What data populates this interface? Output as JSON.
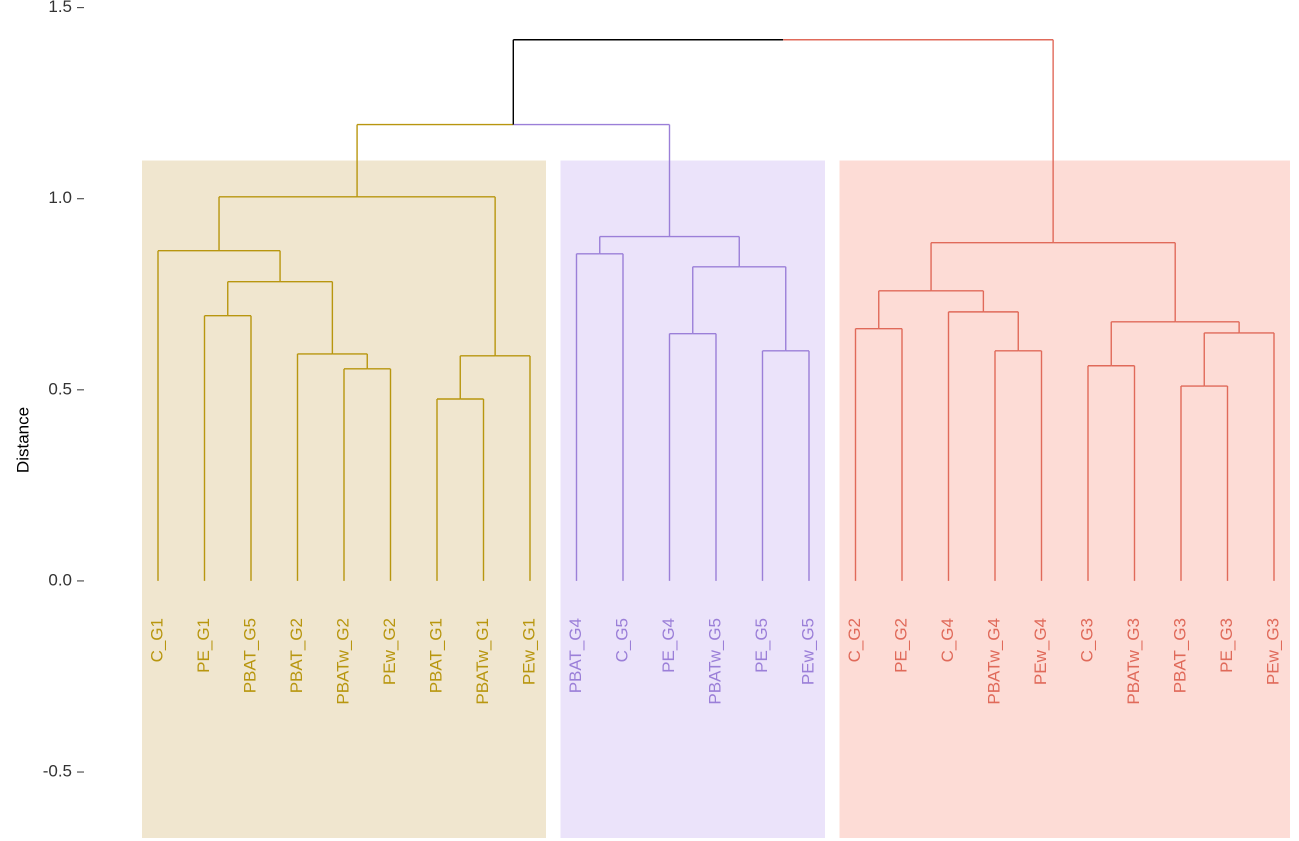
{
  "chart_data": {
    "type": "dendrogram",
    "y_label": "Distance",
    "ylim": [
      -0.67,
      1.52
    ],
    "yticks": [
      {
        "value": -0.5,
        "label": "-0.5"
      },
      {
        "value": 0,
        "label": "0.0"
      },
      {
        "value": 0.5,
        "label": "0.5"
      },
      {
        "value": 1,
        "label": "1.0"
      },
      {
        "value": 1.5,
        "label": "1.5"
      }
    ],
    "link_color": "#000000",
    "box_top": 1.1,
    "clusters": [
      {
        "color": "#b8960f",
        "fill": "#f0e6cf",
        "leaves": [
          "C_G1",
          "PE_G1",
          "PBAT_G5",
          "PBAT_G2",
          "PBATw_G2",
          "PEw_G2",
          "PBAT_G1",
          "PBATw_G1",
          "PEw_G1"
        ]
      },
      {
        "color": "#9b7fd8",
        "fill": "#ebe3fa",
        "leaves": [
          "PBAT_G4",
          "C_G5",
          "PE_G4",
          "PBATw_G5",
          "PE_G5",
          "PEw_G5"
        ]
      },
      {
        "color": "#e06a5a",
        "fill": "#fddcd6",
        "leaves": [
          "C_G2",
          "PE_G2",
          "C_G4",
          "PBATw_G4",
          "PEw_G4",
          "C_G3",
          "PBATw_G3",
          "PBAT_G3",
          "PE_G3",
          "PEw_G3"
        ]
      }
    ],
    "tree": {
      "height": 1.416,
      "children": [
        {
          "height": 1.194,
          "children": [
            {
              "height": 1.005,
              "children": [
                {
                  "height": 0.864,
                  "children": [
                    0,
                    {
                      "height": 0.783,
                      "children": [
                        {
                          "height": 0.694,
                          "children": [
                            1,
                            2
                          ]
                        },
                        {
                          "height": 0.594,
                          "children": [
                            3,
                            {
                              "height": 0.555,
                              "children": [
                                4,
                                5
                              ]
                            }
                          ]
                        }
                      ]
                    }
                  ]
                },
                {
                  "height": 0.589,
                  "children": [
                    {
                      "height": 0.476,
                      "children": [
                        6,
                        7
                      ]
                    },
                    8
                  ]
                }
              ]
            },
            {
              "height": 0.901,
              "children": [
                {
                  "height": 0.856,
                  "children": [
                    9,
                    10
                  ]
                },
                {
                  "height": 0.822,
                  "children": [
                    {
                      "height": 0.647,
                      "children": [
                        11,
                        12
                      ]
                    },
                    {
                      "height": 0.602,
                      "children": [
                        13,
                        14
                      ]
                    }
                  ]
                }
              ]
            }
          ]
        },
        {
          "height": 0.885,
          "children": [
            {
              "height": 0.759,
              "children": [
                {
                  "height": 0.66,
                  "children": [
                    15,
                    16
                  ]
                },
                {
                  "height": 0.704,
                  "children": [
                    17,
                    {
                      "height": 0.602,
                      "children": [
                        18,
                        19
                      ]
                    }
                  ]
                }
              ]
            },
            {
              "height": 0.678,
              "children": [
                {
                  "height": 0.563,
                  "children": [
                    20,
                    21
                  ]
                },
                {
                  "height": 0.649,
                  "children": [
                    {
                      "height": 0.51,
                      "children": [
                        22,
                        23
                      ]
                    },
                    24
                  ]
                }
              ]
            }
          ]
        }
      ]
    }
  }
}
